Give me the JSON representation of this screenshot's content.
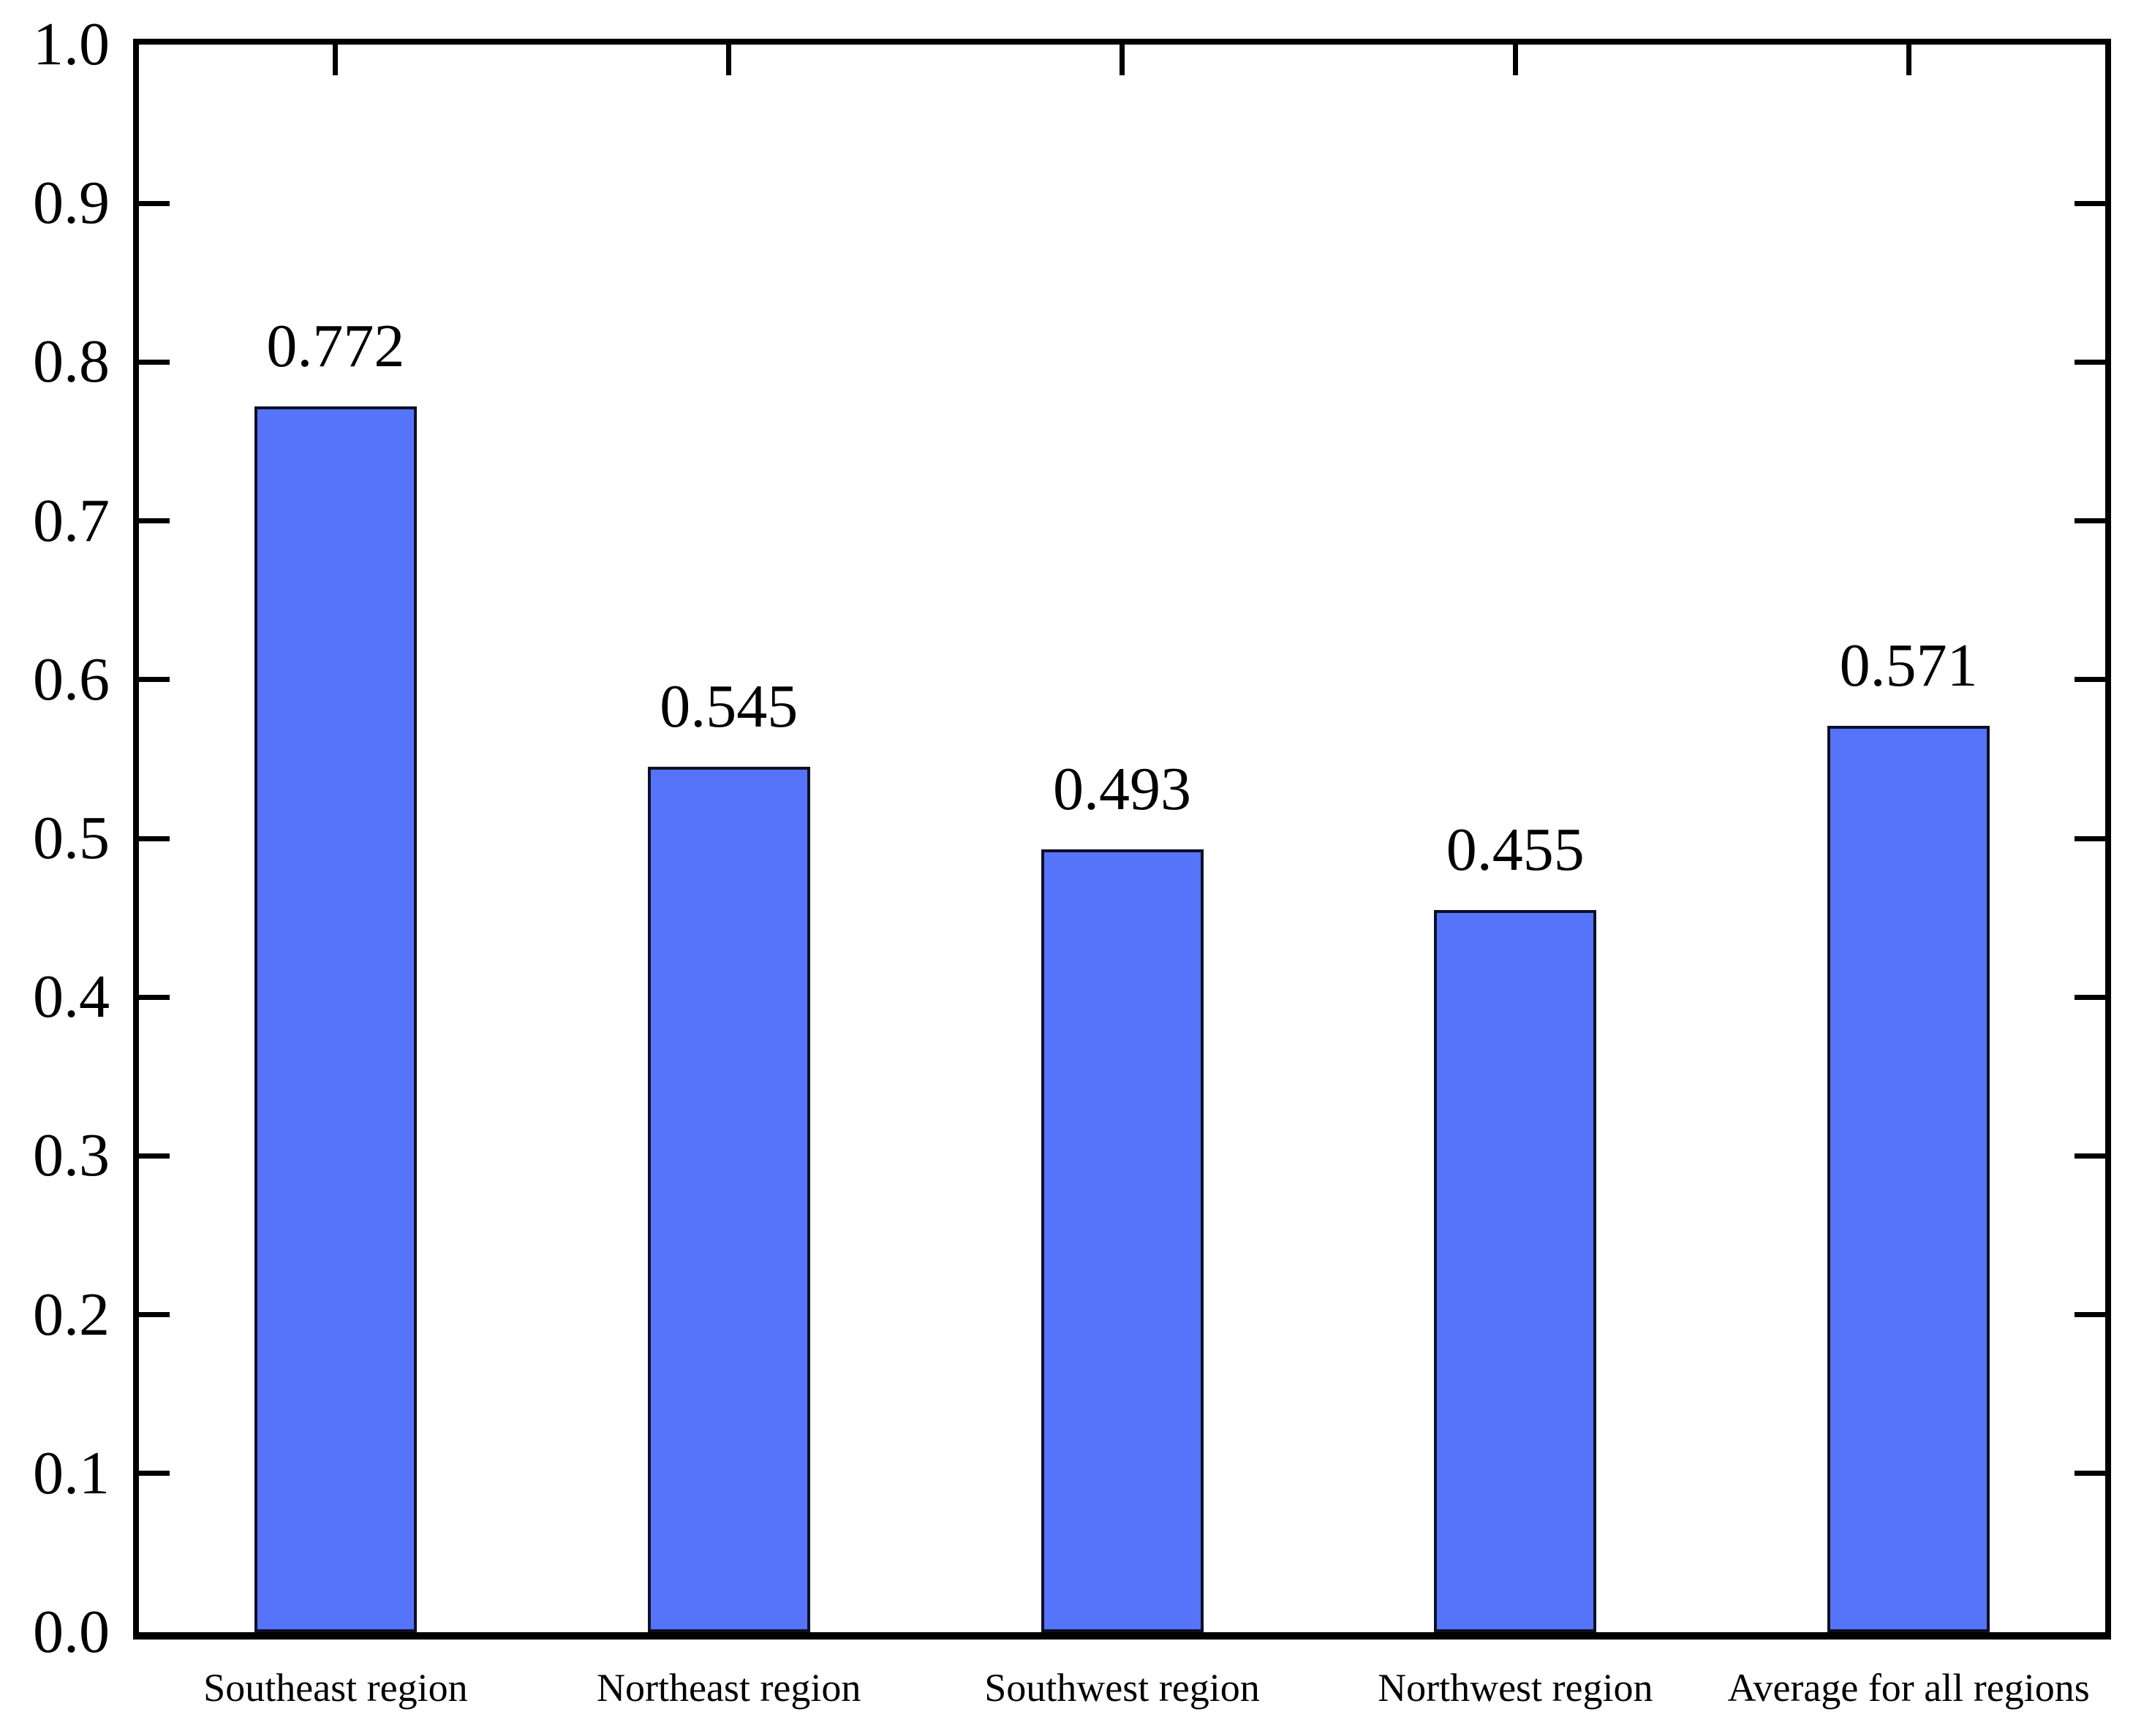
{
  "chart_data": {
    "type": "bar",
    "title": "",
    "xlabel": "",
    "ylabel": "",
    "categories": [
      "Southeast region",
      "Northeast region",
      "Southwest region",
      "Northwest region",
      "Average for all regions"
    ],
    "values": [
      0.772,
      0.545,
      0.493,
      0.455,
      0.571
    ],
    "value_labels": [
      "0.772",
      "0.545",
      "0.493",
      "0.455",
      "0.571"
    ],
    "ylim": [
      0.0,
      1.0
    ],
    "ytick_interval": 0.1,
    "ytick_labels": [
      "0.0",
      "0.1",
      "0.2",
      "0.3",
      "0.4",
      "0.5",
      "0.6",
      "0.7",
      "0.8",
      "0.9",
      "1.0"
    ],
    "grid": false,
    "legend": "none",
    "bar_fill_color": "#5674fa",
    "bar_border_color": "#0d1026",
    "axis_color": "#000000",
    "text_color": "#000000",
    "background_color": "#ffffff"
  }
}
